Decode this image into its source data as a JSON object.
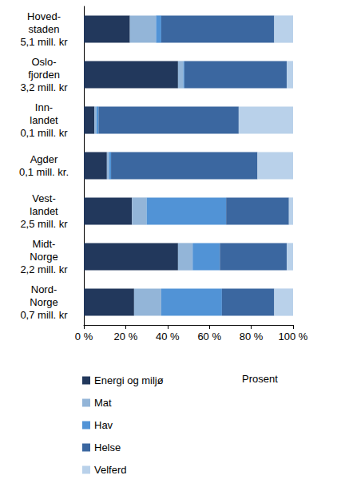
{
  "chart_data": {
    "type": "bar",
    "orientation": "horizontal",
    "stacked": true,
    "grid": false,
    "x_label": "Prosent",
    "categories": [
      "Hoved-\nstaden\n5,1 mill. kr",
      "Oslo-\nfjorden\n3,2 mill. kr",
      "Inn-\nlandet\n0,1 mill. kr",
      "Agder\n0,1 mill. kr.",
      "Vest-\nlandet\n2,5 mill. kr",
      "Midt-\nNorge\n2,2 mill. kr",
      "Nord-\nNorge\n0,7 mill. kr"
    ],
    "series": [
      {
        "name": "Energi og miljø",
        "color": "#22385c",
        "values": [
          22,
          45,
          5,
          11,
          23,
          45,
          24
        ]
      },
      {
        "name": "Mat",
        "color": "#93b5d8",
        "values": [
          12.5,
          2.5,
          1,
          1,
          7,
          7,
          13
        ]
      },
      {
        "name": "Hav",
        "color": "#5193d6",
        "values": [
          2.5,
          0.5,
          1,
          1,
          38,
          13,
          29
        ]
      },
      {
        "name": "Helse",
        "color": "#3b67a0",
        "values": [
          54,
          49,
          67,
          70,
          30,
          32,
          25
        ]
      },
      {
        "name": "Velferd",
        "color": "#b9d1ea",
        "values": [
          9,
          3,
          26,
          17,
          2,
          3,
          9
        ]
      }
    ],
    "xlim": [
      0,
      100
    ],
    "xticks": [
      {
        "value": 0,
        "label": "0 %"
      },
      {
        "value": 20,
        "label": "20 %"
      },
      {
        "value": 40,
        "label": "40 %"
      },
      {
        "value": 60,
        "label": "60 %"
      },
      {
        "value": 80,
        "label": "80 %"
      },
      {
        "value": 100,
        "label": "100 %"
      }
    ],
    "legend": "bottom-left"
  }
}
